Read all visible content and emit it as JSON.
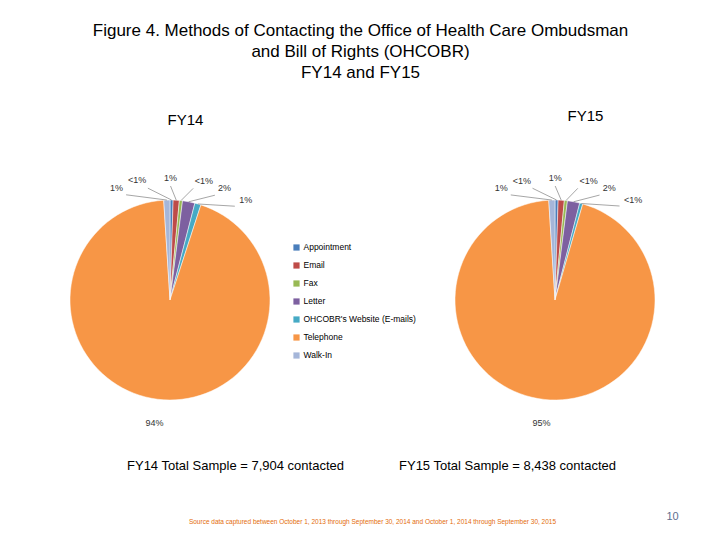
{
  "title": [
    "Figure 4. Methods of Contacting the Office of Health Care Ombudsman",
    "and Bill of Rights (OHCOBR)",
    "FY14 and FY15"
  ],
  "source": "Source data captured between October 1, 2013 through September 30, 2014 and October 1, 2014 through September 30, 2015",
  "page": 10,
  "chart_data": [
    {
      "type": "pie",
      "title": "FY14",
      "categories": [
        "Appointment",
        "Email",
        "Fax",
        "Letter",
        "OHCOBR's Website (E-mails)",
        "Telephone",
        "Walk-In"
      ],
      "values": [
        0.5,
        1,
        0.5,
        2,
        1,
        94,
        1
      ],
      "value_labels": [
        "<1%",
        "1%",
        "<1%",
        "2%",
        "1%",
        "94%",
        "1%"
      ],
      "colors": [
        "#4a7ebb",
        "#be4b48",
        "#98b954",
        "#7d60a0",
        "#46aac5",
        "#f79646",
        "#a5b6d9"
      ],
      "data_labels": true,
      "annotations": [
        "FY14 Total Sample = 7,904 contacted"
      ]
    },
    {
      "type": "pie",
      "title": "FY15",
      "categories": [
        "Appointment",
        "Email",
        "Fax",
        "Letter",
        "OHCOBR's Website (E-mails)",
        "Telephone",
        "Walk-In"
      ],
      "values": [
        0.5,
        1,
        0.5,
        2,
        0.5,
        95,
        1
      ],
      "value_labels": [
        "<1%",
        "1%",
        "<1%",
        "2%",
        "<1%",
        "95%",
        "1%"
      ],
      "colors": [
        "#4a7ebb",
        "#be4b48",
        "#98b954",
        "#7d60a0",
        "#46aac5",
        "#f79646",
        "#a5b6d9"
      ],
      "data_labels": true,
      "annotations": [
        "FY15 Total Sample = 8,438 contacted"
      ]
    }
  ]
}
